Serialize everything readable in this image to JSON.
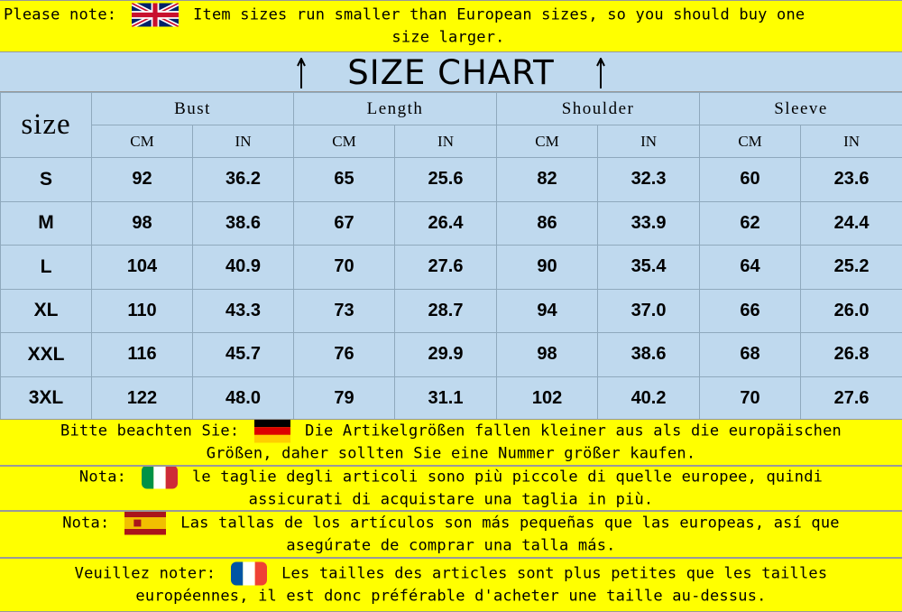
{
  "notes": {
    "en": {
      "label": "Please note:",
      "flag": "uk-flag-icon",
      "text1": "Item sizes run smaller than European sizes, so you should buy one",
      "text2": "size larger."
    },
    "de": {
      "label": "Bitte beachten Sie:",
      "flag": "germany-flag-icon",
      "text1": "Die Artikelgrößen fallen kleiner aus als die europäischen",
      "text2": "Größen, daher sollten Sie eine Nummer größer kaufen."
    },
    "it": {
      "label": "Nota:",
      "flag": "italy-flag-icon",
      "text1": "le taglie degli articoli sono più piccole di quelle europee, quindi",
      "text2": "assicurati di acquistare una taglia in più."
    },
    "es": {
      "label": "Nota:",
      "flag": "spain-flag-icon",
      "text1": "Las tallas de los artículos son más pequeñas que las europeas, así que",
      "text2": "asegúrate de comprar una talla más."
    },
    "fr": {
      "label": "Veuillez noter:",
      "flag": "france-flag-icon",
      "text1": "Les tailles des articles sont plus petites que les tailles",
      "text2": "européennes, il est donc préférable d'acheter une taille au-dessus."
    }
  },
  "title": "SIZE CHART",
  "table": {
    "size_header": "size",
    "groups": [
      "Bust",
      "Length",
      "Shoulder",
      "Sleeve"
    ],
    "units": [
      "CM",
      "IN",
      "CM",
      "IN",
      "CM",
      "IN",
      "CM",
      "IN"
    ],
    "rows": [
      {
        "size": "S",
        "values": [
          "92",
          "36.2",
          "65",
          "25.6",
          "82",
          "32.3",
          "60",
          "23.6"
        ]
      },
      {
        "size": "M",
        "values": [
          "98",
          "38.6",
          "67",
          "26.4",
          "86",
          "33.9",
          "62",
          "24.4"
        ]
      },
      {
        "size": "L",
        "values": [
          "104",
          "40.9",
          "70",
          "27.6",
          "90",
          "35.4",
          "64",
          "25.2"
        ]
      },
      {
        "size": "XL",
        "values": [
          "110",
          "43.3",
          "73",
          "28.7",
          "94",
          "37.0",
          "66",
          "26.0"
        ]
      },
      {
        "size": "XXL",
        "values": [
          "116",
          "45.7",
          "76",
          "29.9",
          "98",
          "38.6",
          "68",
          "26.8"
        ]
      },
      {
        "size": "3XL",
        "values": [
          "122",
          "48.0",
          "79",
          "31.1",
          "102",
          "40.2",
          "70",
          "27.6"
        ]
      }
    ]
  },
  "colors": {
    "note_bg": "#ffff00",
    "table_bg": "#bfd9ee"
  }
}
